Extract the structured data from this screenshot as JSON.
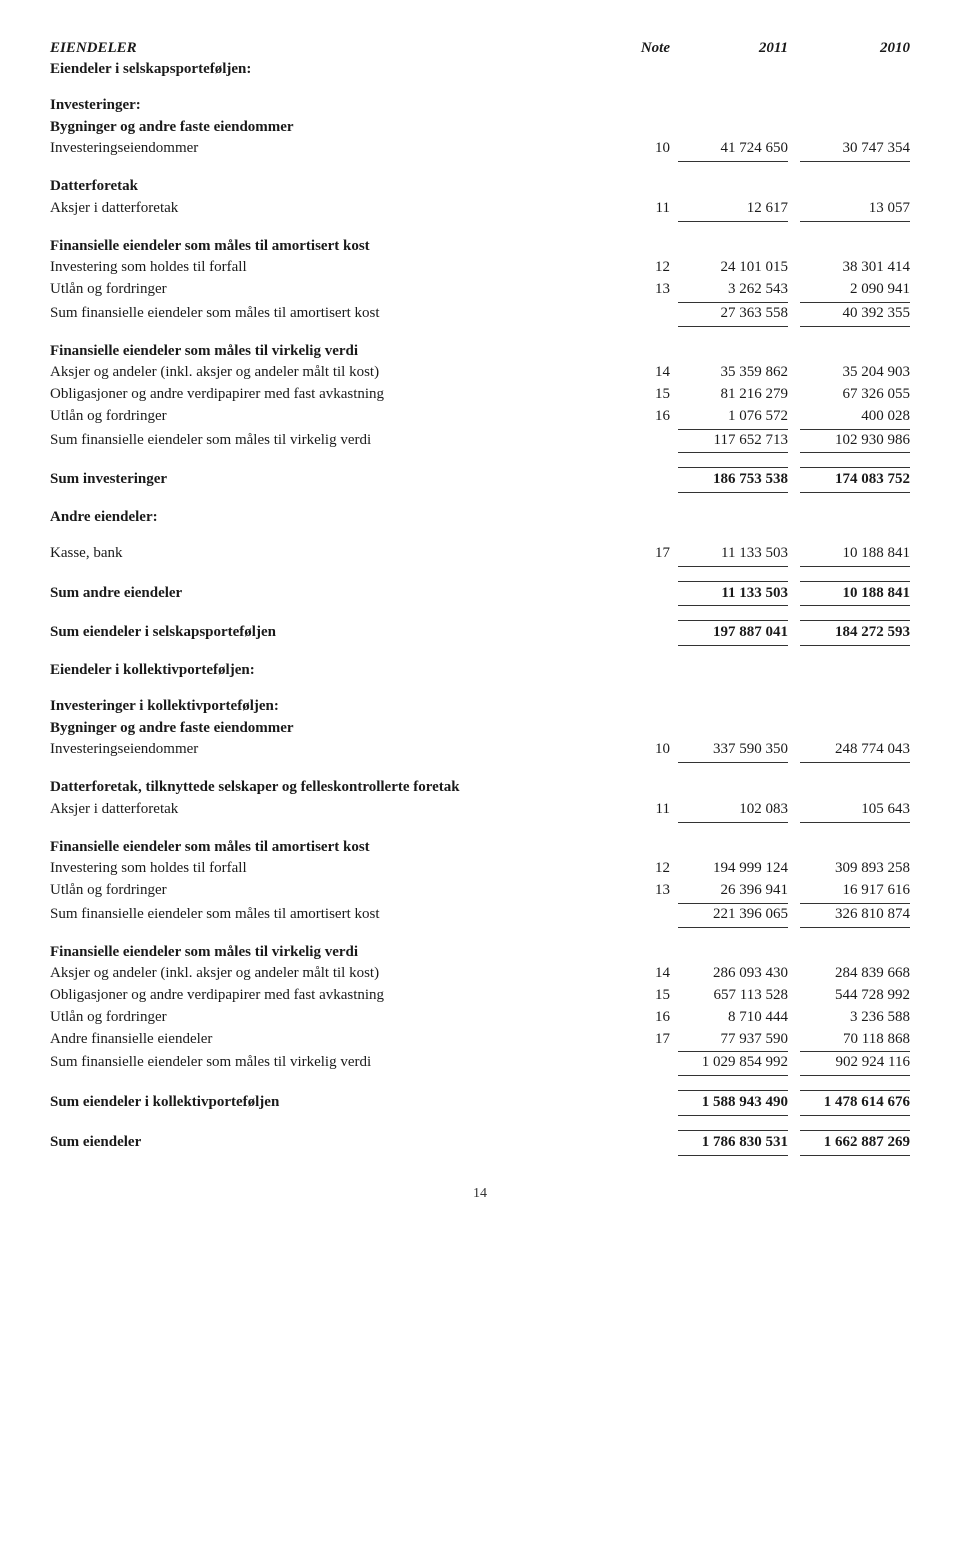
{
  "header": {
    "col0": "EIENDELER",
    "col1": "Note",
    "col2": "2011",
    "col3": "2010"
  },
  "rows": [
    {
      "label": "Eiendeler i selskapsporteføljen:",
      "bold": true
    },
    {
      "spacer": true
    },
    {
      "label": "Investeringer:",
      "bold": true
    },
    {
      "label": "Bygninger og andre faste eiendommer",
      "bold": true
    },
    {
      "label": "Investeringseiendommer",
      "note": "10",
      "v1": "41 724 650",
      "v2": "30 747 354",
      "style": "single"
    },
    {
      "spacer": true
    },
    {
      "label": "Datterforetak",
      "bold": true
    },
    {
      "label": "Aksjer i datterforetak",
      "note": "11",
      "v1": "12 617",
      "v2": "13 057",
      "style": "single"
    },
    {
      "spacer": true
    },
    {
      "label": "Finansielle eiendeler som måles til amortisert kost",
      "bold": true
    },
    {
      "label": "Investering som holdes til forfall",
      "note": "12",
      "v1": "24 101 015",
      "v2": "38 301 414"
    },
    {
      "label": "Utlån og fordringer",
      "note": "13",
      "v1": "3 262 543",
      "v2": "2 090 941",
      "style": "single"
    },
    {
      "label": "Sum finansielle eiendeler som måles til amortisert kost",
      "v1": "27 363 558",
      "v2": "40 392 355",
      "style": "single"
    },
    {
      "spacer": true
    },
    {
      "label": "Finansielle eiendeler som måles til virkelig verdi",
      "bold": true
    },
    {
      "label": "Aksjer og andeler (inkl. aksjer og andeler målt til kost)",
      "note": "14",
      "v1": "35 359 862",
      "v2": "35 204 903"
    },
    {
      "label": "Obligasjoner og andre verdipapirer med fast avkastning",
      "note": "15",
      "v1": "81 216 279",
      "v2": "67 326 055"
    },
    {
      "label": "Utlån og fordringer",
      "note": "16",
      "v1": "1 076 572",
      "v2": "400 028",
      "style": "single"
    },
    {
      "label": "Sum finansielle eiendeler som måles til virkelig verdi",
      "v1": "117 652 713",
      "v2": "102 930 986",
      "style": "single"
    },
    {
      "spacer": true
    },
    {
      "label": "Sum investeringer",
      "bold": true,
      "v1": "186 753 538",
      "v2": "174 083 752",
      "style": "both",
      "boldv": true
    },
    {
      "spacer": true
    },
    {
      "label": "Andre eiendeler:",
      "bold": true
    },
    {
      "spacer": true
    },
    {
      "label": "Kasse, bank",
      "note": "17",
      "v1": "11 133 503",
      "v2": "10 188 841",
      "style": "single"
    },
    {
      "spacer": true
    },
    {
      "label": "Sum andre eiendeler",
      "bold": true,
      "v1": "11 133 503",
      "v2": "10 188 841",
      "style": "both",
      "boldv": true
    },
    {
      "spacer": true
    },
    {
      "label": "Sum eiendeler i selskapsporteføljen",
      "bold": true,
      "v1": "197 887 041",
      "v2": "184 272 593",
      "style": "both",
      "boldv": true
    },
    {
      "spacer": true
    },
    {
      "label": "Eiendeler i kollektivporteføljen:",
      "bold": true
    },
    {
      "spacer": true
    },
    {
      "label": "Investeringer i kollektivporteføljen:",
      "bold": true
    },
    {
      "label": "Bygninger og andre faste eiendommer",
      "bold": true
    },
    {
      "label": "Investeringseiendommer",
      "note": "10",
      "v1": "337 590 350",
      "v2": "248 774 043",
      "style": "single"
    },
    {
      "spacer": true
    },
    {
      "label": "Datterforetak, tilknyttede selskaper og felleskontrollerte foretak",
      "bold": true
    },
    {
      "label": "Aksjer i datterforetak",
      "note": "11",
      "v1": "102 083",
      "v2": "105 643",
      "style": "single"
    },
    {
      "spacer": true
    },
    {
      "label": "Finansielle eiendeler som måles til amortisert kost",
      "bold": true
    },
    {
      "label": "Investering som holdes til forfall",
      "note": "12",
      "v1": "194 999 124",
      "v2": "309 893 258"
    },
    {
      "label": "Utlån og fordringer",
      "note": "13",
      "v1": "26 396 941",
      "v2": "16 917 616",
      "style": "single"
    },
    {
      "label": "Sum finansielle eiendeler som måles til amortisert kost",
      "v1": "221 396 065",
      "v2": "326 810 874",
      "style": "single"
    },
    {
      "spacer": true
    },
    {
      "label": "Finansielle eiendeler som måles til virkelig verdi",
      "bold": true
    },
    {
      "label": "Aksjer og andeler (inkl. aksjer og andeler målt til kost)",
      "note": "14",
      "v1": "286 093 430",
      "v2": "284 839 668"
    },
    {
      "label": "Obligasjoner og andre verdipapirer med fast avkastning",
      "note": "15",
      "v1": "657 113 528",
      "v2": "544 728 992"
    },
    {
      "label": "Utlån og fordringer",
      "note": "16",
      "v1": "8 710 444",
      "v2": "3 236 588"
    },
    {
      "label": "Andre finansielle eiendeler",
      "note": "17",
      "v1": "77 937 590",
      "v2": "70 118 868",
      "style": "single"
    },
    {
      "label": "Sum finansielle eiendeler som måles til virkelig verdi",
      "v1": "1 029 854 992",
      "v2": "902 924 116",
      "style": "single"
    },
    {
      "spacer": true
    },
    {
      "label": "Sum eiendeler i kollektivporteføljen",
      "bold": true,
      "v1": "1 588 943 490",
      "v2": "1 478 614 676",
      "style": "both",
      "boldv": true
    },
    {
      "spacer": true
    },
    {
      "label": "Sum eiendeler",
      "bold": true,
      "v1": "1 786 830 531",
      "v2": "1 662 887 269",
      "style": "both",
      "boldv": true
    }
  ],
  "page": "14"
}
